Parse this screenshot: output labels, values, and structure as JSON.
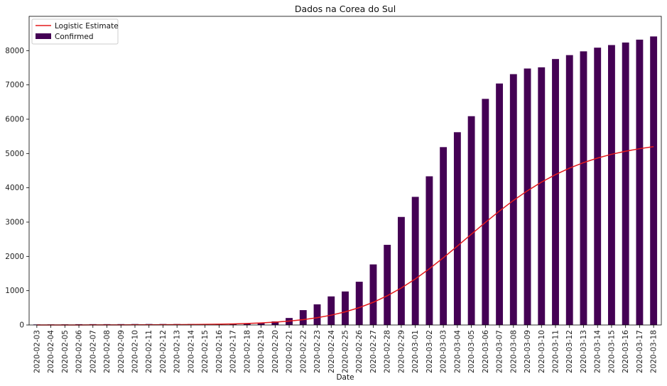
{
  "chart_data": {
    "type": "bar",
    "title": "Dados na Corea do Sul",
    "xlabel": "Date",
    "ylabel": "",
    "ylim": [
      0,
      9000
    ],
    "yticks": [
      0,
      1000,
      2000,
      3000,
      4000,
      5000,
      6000,
      7000,
      8000
    ],
    "grid": false,
    "legend_position": "top-left",
    "categories": [
      "2020-02-03",
      "2020-02-04",
      "2020-02-05",
      "2020-02-06",
      "2020-02-07",
      "2020-02-08",
      "2020-02-09",
      "2020-02-10",
      "2020-02-11",
      "2020-02-12",
      "2020-02-13",
      "2020-02-14",
      "2020-02-15",
      "2020-02-16",
      "2020-02-17",
      "2020-02-18",
      "2020-02-19",
      "2020-02-20",
      "2020-02-21",
      "2020-02-22",
      "2020-02-23",
      "2020-02-24",
      "2020-02-25",
      "2020-02-26",
      "2020-02-27",
      "2020-02-28",
      "2020-02-29",
      "2020-03-01",
      "2020-03-02",
      "2020-03-03",
      "2020-03-04",
      "2020-03-05",
      "2020-03-06",
      "2020-03-07",
      "2020-03-08",
      "2020-03-09",
      "2020-03-10",
      "2020-03-11",
      "2020-03-12",
      "2020-03-13",
      "2020-03-14",
      "2020-03-15",
      "2020-03-16",
      "2020-03-17",
      "2020-03-18"
    ],
    "series": [
      {
        "name": "Confirmed",
        "kind": "bar",
        "color": "#440154",
        "values": [
          15,
          16,
          18,
          23,
          24,
          24,
          25,
          27,
          28,
          28,
          28,
          28,
          28,
          29,
          30,
          31,
          51,
          104,
          204,
          433,
          602,
          833,
          977,
          1261,
          1766,
          2337,
          3150,
          3736,
          4335,
          5186,
          5621,
          6088,
          6593,
          7041,
          7314,
          7478,
          7513,
          7755,
          7869,
          7979,
          8086,
          8162,
          8236,
          8320,
          8413
        ]
      },
      {
        "name": "Logistic Estimate",
        "kind": "line",
        "color": "#e31a1c",
        "values": [
          1,
          1,
          1,
          1,
          2,
          2,
          3,
          4,
          5,
          7,
          9,
          12,
          17,
          23,
          32,
          44,
          60,
          83,
          114,
          156,
          212,
          286,
          383,
          507,
          662,
          852,
          1079,
          1342,
          1638,
          1960,
          2300,
          2648,
          2992,
          3322,
          3632,
          3914,
          4165,
          4385,
          4574,
          4734,
          4867,
          4977,
          5067,
          5140,
          5200
        ]
      }
    ]
  }
}
